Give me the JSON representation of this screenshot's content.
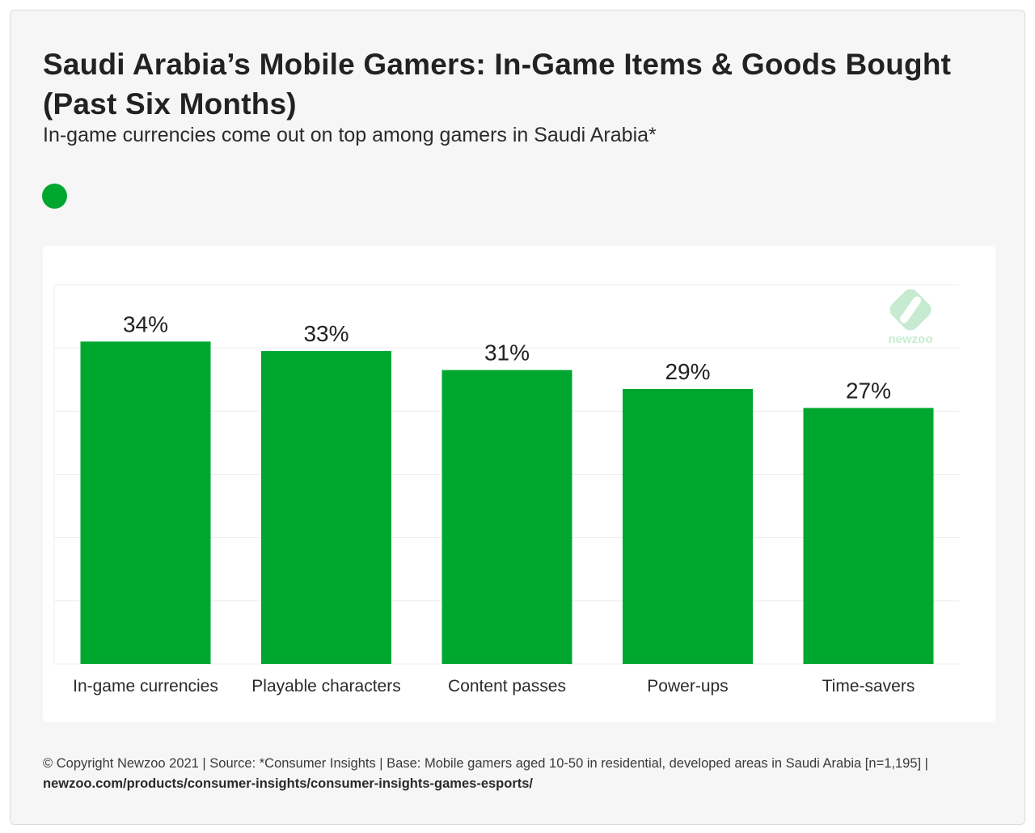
{
  "title": "Saudi Arabia’s Mobile Gamers: In-Game Items & Goods Bought (Past Six Months)",
  "subtitle": "In-game currencies come out on top among gamers in Saudi Arabia*",
  "legend": {
    "color": "#00a72f"
  },
  "watermark": {
    "text": "newzoo",
    "icon": "newzoo-logo-icon"
  },
  "footer": {
    "text": "© Copyright Newzoo 2021 | Source: *Consumer Insights | Base: Mobile gamers aged 10-50 in residential, developed areas in Saudi Arabia [n=1,195] | ",
    "link": "newzoo.com/products/consumer-insights/consumer-insights-games-esports/"
  },
  "chart_data": {
    "type": "bar",
    "categories": [
      "In-game currencies",
      "Playable characters",
      "Content passes",
      "Power-ups",
      "Time-savers"
    ],
    "values": [
      34,
      33,
      31,
      29,
      27
    ],
    "value_labels": [
      "34%",
      "33%",
      "31%",
      "29%",
      "27%"
    ],
    "ylim": [
      0,
      40
    ],
    "grid": true,
    "bar_color": "#00a72f"
  }
}
